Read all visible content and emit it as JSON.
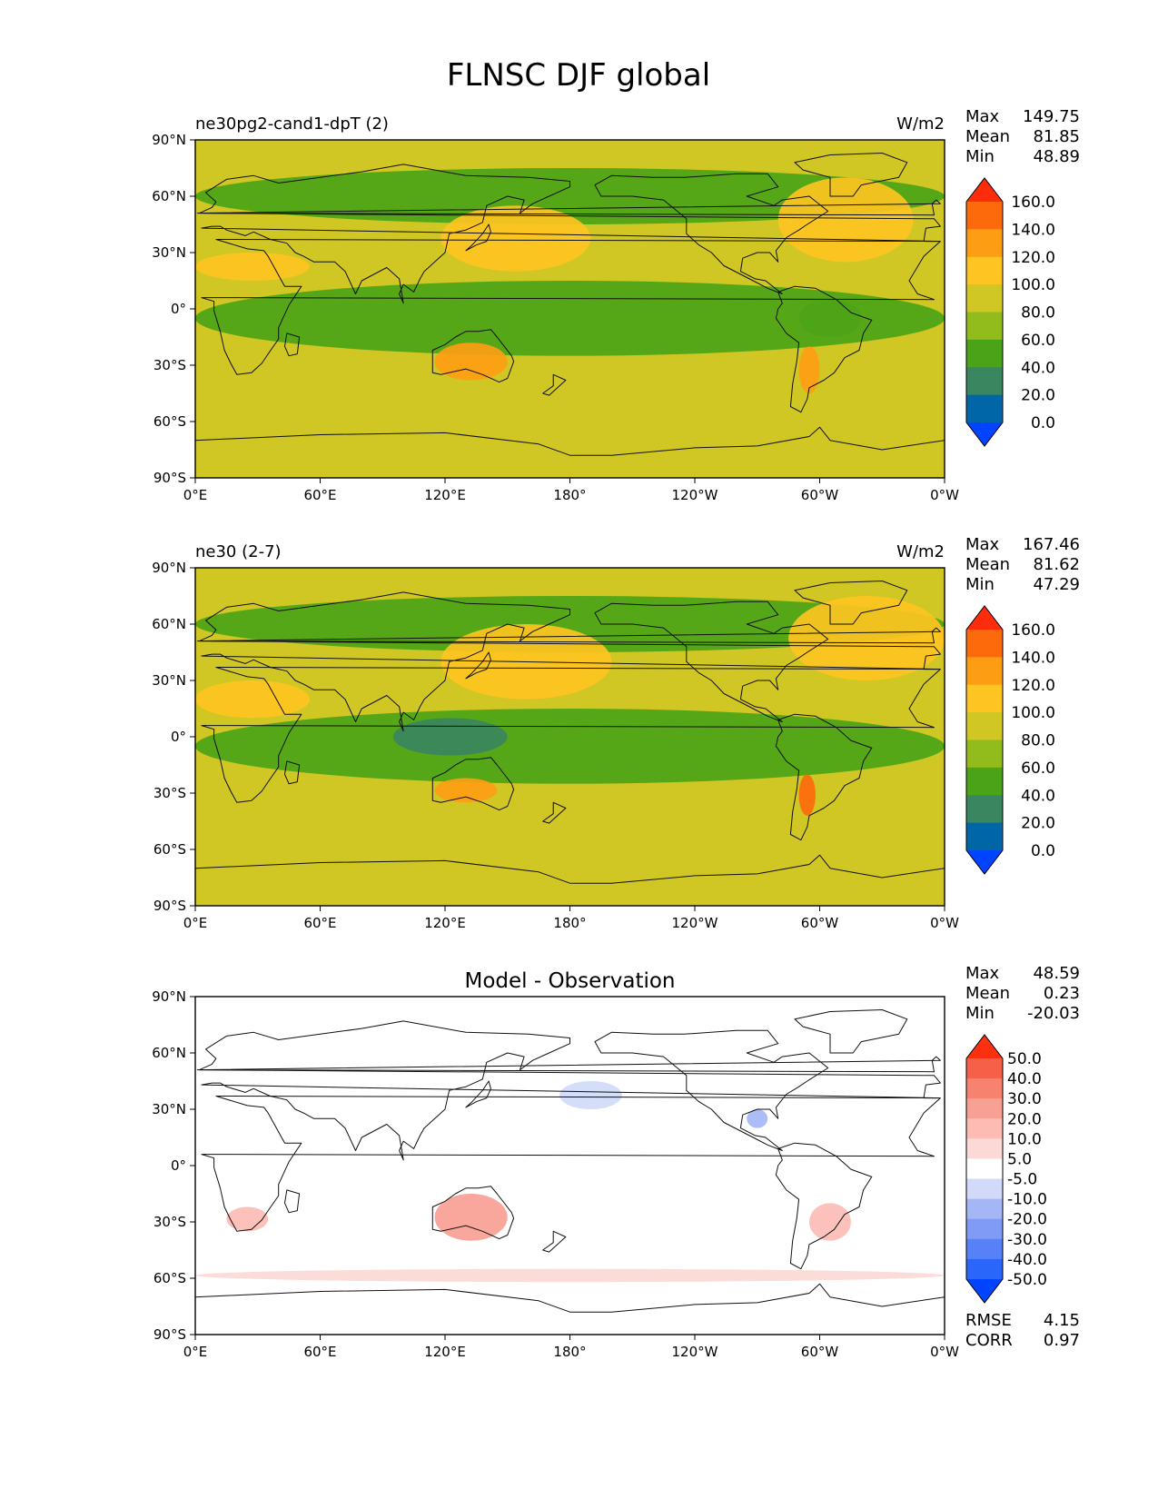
{
  "figure": {
    "title": "FLNSC DJF global"
  },
  "x_ticks": [
    "0°E",
    "60°E",
    "120°E",
    "180°",
    "120°W",
    "60°W",
    "0°W"
  ],
  "y_ticks": [
    "90°N",
    "60°N",
    "30°N",
    "0°",
    "30°S",
    "60°S",
    "90°S"
  ],
  "colors": {
    "field_levels": [
      "#0044ff",
      "#0066a5",
      "#3a8660",
      "#4ba417",
      "#92bb1c",
      "#d0c624",
      "#fdc422",
      "#fd9d14",
      "#fd6a0c",
      "#fd2c0a"
    ],
    "diff_levels": [
      "#0044ff",
      "#2b66fb",
      "#5781f7",
      "#7f9bf5",
      "#a4b6f6",
      "#d1dbf9",
      "#ffffff",
      "#fcd9d6",
      "#fcbcb4",
      "#f9a095",
      "#f7836f",
      "#f56148",
      "#fb300f"
    ]
  },
  "chart_data": [
    {
      "type": "heatmap",
      "title": "ne30pg2-cand1-dpT (2)",
      "units": "W/m2",
      "stats": {
        "max_label": "Max",
        "max": "149.75",
        "mean_label": "Mean",
        "mean": "81.85",
        "min_label": "Min",
        "min": "48.89"
      },
      "x_range": [
        0,
        360
      ],
      "y_range": [
        -90,
        90
      ],
      "colorbar": {
        "ticks": [
          "0.0",
          "20.0",
          "40.0",
          "60.0",
          "80.0",
          "100.0",
          "120.0",
          "140.0",
          "160.0"
        ],
        "extend": "both"
      },
      "dominant_value_range": [
        80,
        100
      ],
      "regions": [
        {
          "name": "tropics",
          "lon": [
            0,
            360
          ],
          "lat": [
            -25,
            15
          ],
          "level": 3
        },
        {
          "name": "north-mid",
          "lon": [
            0,
            360
          ],
          "lat": [
            45,
            75
          ],
          "level": 3
        },
        {
          "name": "kuroshio",
          "lon": [
            118,
            190
          ],
          "lat": [
            20,
            55
          ],
          "level": 6
        },
        {
          "name": "gulf-stream",
          "lon": [
            280,
            345
          ],
          "lat": [
            25,
            70
          ],
          "level": 6
        },
        {
          "name": "australia",
          "lon": [
            115,
            150
          ],
          "lat": [
            -38,
            -18
          ],
          "level": 7
        },
        {
          "name": "andes",
          "lon": [
            290,
            300
          ],
          "lat": [
            -45,
            -20
          ],
          "level": 7
        },
        {
          "name": "amazon",
          "lon": [
            290,
            320
          ],
          "lat": [
            -15,
            5
          ],
          "level": 3
        },
        {
          "name": "sahara",
          "lon": [
            0,
            55
          ],
          "lat": [
            15,
            30
          ],
          "level": 6
        }
      ]
    },
    {
      "type": "heatmap",
      "title": "ne30 (2-7)",
      "units": "W/m2",
      "stats": {
        "max_label": "Max",
        "max": "167.46",
        "mean_label": "Mean",
        "mean": "81.62",
        "min_label": "Min",
        "min": "47.29"
      },
      "x_range": [
        0,
        360
      ],
      "y_range": [
        -90,
        90
      ],
      "colorbar": {
        "ticks": [
          "0.0",
          "20.0",
          "40.0",
          "60.0",
          "80.0",
          "100.0",
          "120.0",
          "140.0",
          "160.0"
        ],
        "extend": "both"
      },
      "dominant_value_range": [
        80,
        100
      ],
      "regions": [
        {
          "name": "tropics",
          "lon": [
            0,
            360
          ],
          "lat": [
            -25,
            15
          ],
          "level": 3
        },
        {
          "name": "north-mid",
          "lon": [
            0,
            360
          ],
          "lat": [
            45,
            75
          ],
          "level": 3
        },
        {
          "name": "kuroshio",
          "lon": [
            118,
            200
          ],
          "lat": [
            20,
            60
          ],
          "level": 6
        },
        {
          "name": "gulf-stream",
          "lon": [
            285,
            360
          ],
          "lat": [
            30,
            75
          ],
          "level": 6
        },
        {
          "name": "australia",
          "lon": [
            115,
            145
          ],
          "lat": [
            -35,
            -22
          ],
          "level": 7
        },
        {
          "name": "andes",
          "lon": [
            290,
            298
          ],
          "lat": [
            -42,
            -20
          ],
          "level": 8
        },
        {
          "name": "maritime",
          "lon": [
            95,
            150
          ],
          "lat": [
            -10,
            10
          ],
          "level": 2
        },
        {
          "name": "sahara",
          "lon": [
            0,
            55
          ],
          "lat": [
            10,
            30
          ],
          "level": 6
        }
      ]
    },
    {
      "type": "heatmap",
      "title": "Model - Observation",
      "units": "",
      "stats": {
        "max_label": "Max",
        "max": "48.59",
        "mean_label": "Mean",
        "mean": "0.23",
        "min_label": "Min",
        "min": "-20.03"
      },
      "x_range": [
        0,
        360
      ],
      "y_range": [
        -90,
        90
      ],
      "colorbar": {
        "ticks": [
          "-50.0",
          "-40.0",
          "-30.0",
          "-20.0",
          "-10.0",
          "-5.0",
          "5.0",
          "10.0",
          "20.0",
          "30.0",
          "40.0",
          "50.0"
        ],
        "extend": "both"
      },
      "dominant_value_range": [
        -5,
        5
      ],
      "regions": [
        {
          "name": "australia",
          "lon": [
            115,
            150
          ],
          "lat": [
            -40,
            -15
          ],
          "level": 9
        },
        {
          "name": "south-america",
          "lon": [
            295,
            315
          ],
          "lat": [
            -40,
            -20
          ],
          "level": 8
        },
        {
          "name": "south-africa",
          "lon": [
            15,
            35
          ],
          "lat": [
            -35,
            -22
          ],
          "level": 8
        },
        {
          "name": "north-pacific",
          "lon": [
            175,
            205
          ],
          "lat": [
            30,
            45
          ],
          "level": 5
        },
        {
          "name": "gulf",
          "lon": [
            265,
            275
          ],
          "lat": [
            20,
            30
          ],
          "level": 4
        },
        {
          "name": "southern-ocean",
          "lon": [
            0,
            360
          ],
          "lat": [
            -62,
            -55
          ],
          "level": 7
        }
      ],
      "rmse_label": "RMSE",
      "rmse": "4.15",
      "corr_label": "CORR",
      "corr": "0.97"
    }
  ]
}
